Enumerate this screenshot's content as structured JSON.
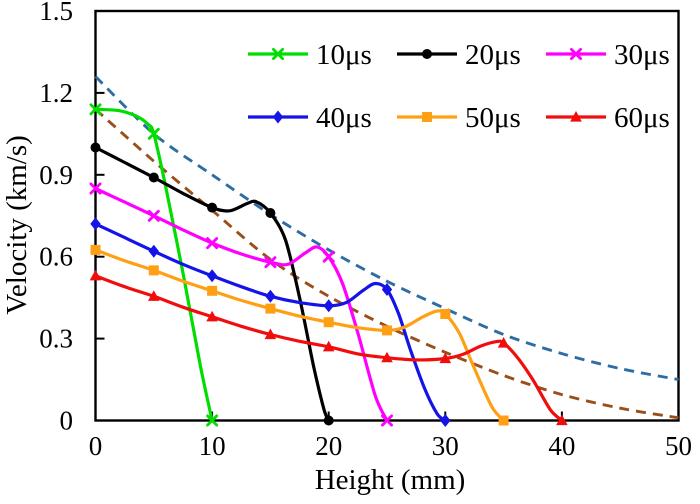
{
  "chart_data": {
    "type": "line",
    "title": "",
    "xlabel": "Height (mm)",
    "ylabel": "Velocity (km/s)",
    "xlim": [
      0,
      50
    ],
    "ylim": [
      0,
      1.5
    ],
    "x_ticks": [
      "0",
      "10",
      "20",
      "30",
      "40",
      "50"
    ],
    "x_tick_values": [
      0,
      10,
      20,
      30,
      40,
      50
    ],
    "y_ticks": [
      "0",
      "0.3",
      "0.6",
      "0.9",
      "1.2",
      "1.5"
    ],
    "y_tick_values": [
      0,
      0.3,
      0.6,
      0.9,
      1.2,
      1.5
    ],
    "grid": false,
    "legend_position": "top-inside-two-rows",
    "axis_color": "#000000",
    "background_color": "#ffffff",
    "series": [
      {
        "name": "10μs",
        "color": "#00DE00",
        "marker": "x",
        "x": [
          0,
          5,
          10
        ],
        "y": [
          1.14,
          1.05,
          0
        ],
        "shape": [
          [
            0,
            1.14
          ],
          [
            2,
            1.135
          ],
          [
            3.5,
            1.115
          ],
          [
            4.5,
            1.085
          ],
          [
            5,
            1.05
          ],
          [
            6,
            0.86
          ],
          [
            7.5,
            0.54
          ],
          [
            9,
            0.2
          ],
          [
            10,
            0
          ]
        ]
      },
      {
        "name": "20μs",
        "color": "#000000",
        "marker": "circle",
        "x": [
          0,
          5,
          10,
          15,
          20
        ],
        "y": [
          1.0,
          0.89,
          0.78,
          0.76,
          0
        ],
        "shape": [
          [
            0,
            1.0
          ],
          [
            2.5,
            0.945
          ],
          [
            5,
            0.89
          ],
          [
            7.5,
            0.832
          ],
          [
            10,
            0.78
          ],
          [
            11.5,
            0.768
          ],
          [
            13,
            0.795
          ],
          [
            13.8,
            0.801
          ],
          [
            15,
            0.76
          ],
          [
            16.3,
            0.66
          ],
          [
            17.5,
            0.45
          ],
          [
            18.7,
            0.2
          ],
          [
            19.6,
            0.04
          ],
          [
            20,
            0
          ]
        ]
      },
      {
        "name": "30μs",
        "color": "#FF00FF",
        "marker": "x",
        "x": [
          0,
          5,
          10,
          15,
          20,
          25
        ],
        "y": [
          0.85,
          0.75,
          0.65,
          0.58,
          0.6,
          0
        ],
        "shape": [
          [
            0,
            0.85
          ],
          [
            2.5,
            0.8
          ],
          [
            5,
            0.75
          ],
          [
            7.5,
            0.698
          ],
          [
            10,
            0.65
          ],
          [
            12.5,
            0.61
          ],
          [
            15,
            0.58
          ],
          [
            16.5,
            0.572
          ],
          [
            18,
            0.614
          ],
          [
            19,
            0.636
          ],
          [
            20,
            0.6
          ],
          [
            21.2,
            0.5
          ],
          [
            22.5,
            0.32
          ],
          [
            24,
            0.09
          ],
          [
            25,
            0
          ]
        ]
      },
      {
        "name": "40μs",
        "color": "#1414E8",
        "marker": "diamond",
        "x": [
          0,
          5,
          10,
          15,
          20,
          25,
          30
        ],
        "y": [
          0.72,
          0.62,
          0.53,
          0.455,
          0.42,
          0.48,
          0
        ],
        "shape": [
          [
            0,
            0.72
          ],
          [
            2.5,
            0.67
          ],
          [
            5,
            0.62
          ],
          [
            7.5,
            0.572
          ],
          [
            10,
            0.53
          ],
          [
            12.5,
            0.49
          ],
          [
            15,
            0.455
          ],
          [
            17.5,
            0.432
          ],
          [
            20,
            0.42
          ],
          [
            21.5,
            0.432
          ],
          [
            23,
            0.478
          ],
          [
            24,
            0.502
          ],
          [
            25,
            0.48
          ],
          [
            26,
            0.39
          ],
          [
            27,
            0.26
          ],
          [
            28.2,
            0.12
          ],
          [
            29.3,
            0.025
          ],
          [
            30,
            0
          ]
        ]
      },
      {
        "name": "50μs",
        "color": "#FFA014",
        "marker": "square",
        "x": [
          0,
          5,
          10,
          15,
          20,
          25,
          30,
          35
        ],
        "y": [
          0.625,
          0.55,
          0.475,
          0.41,
          0.36,
          0.33,
          0.39,
          0
        ],
        "shape": [
          [
            0,
            0.625
          ],
          [
            2.5,
            0.585
          ],
          [
            5,
            0.55
          ],
          [
            7.5,
            0.51
          ],
          [
            10,
            0.475
          ],
          [
            12.5,
            0.44
          ],
          [
            15,
            0.41
          ],
          [
            17.5,
            0.382
          ],
          [
            20,
            0.36
          ],
          [
            22.5,
            0.34
          ],
          [
            25,
            0.33
          ],
          [
            26.5,
            0.342
          ],
          [
            28,
            0.378
          ],
          [
            29.3,
            0.401
          ],
          [
            30,
            0.39
          ],
          [
            31.2,
            0.32
          ],
          [
            32.5,
            0.19
          ],
          [
            34,
            0.05
          ],
          [
            35,
            0
          ]
        ]
      },
      {
        "name": "60μs",
        "color": "#F20D0D",
        "marker": "triangle",
        "x": [
          0,
          5,
          10,
          15,
          20,
          25,
          30,
          35,
          40
        ],
        "y": [
          0.53,
          0.455,
          0.38,
          0.315,
          0.27,
          0.23,
          0.227,
          0.284,
          0
        ],
        "shape": [
          [
            0,
            0.53
          ],
          [
            2.5,
            0.49
          ],
          [
            5,
            0.455
          ],
          [
            7.5,
            0.415
          ],
          [
            10,
            0.38
          ],
          [
            12.5,
            0.345
          ],
          [
            15,
            0.315
          ],
          [
            17.5,
            0.29
          ],
          [
            20,
            0.27
          ],
          [
            22.5,
            0.244
          ],
          [
            25,
            0.23
          ],
          [
            27.5,
            0.222
          ],
          [
            30,
            0.227
          ],
          [
            31.5,
            0.242
          ],
          [
            33,
            0.272
          ],
          [
            34.4,
            0.289
          ],
          [
            35,
            0.284
          ],
          [
            36.2,
            0.23
          ],
          [
            37.5,
            0.15
          ],
          [
            39,
            0.04
          ],
          [
            40,
            0
          ]
        ]
      }
    ],
    "trend_lines": [
      {
        "name": "upper-dashed-trend",
        "color": "#2E6DA3",
        "dash": "10 7",
        "x": [
          0,
          5,
          10,
          15,
          20,
          25,
          30,
          35,
          40,
          45,
          50
        ],
        "y": [
          1.26,
          1.05,
          0.9,
          0.755,
          0.625,
          0.51,
          0.41,
          0.315,
          0.245,
          0.19,
          0.15
        ]
      },
      {
        "name": "lower-dashed-trend",
        "color": "#9A4F1A",
        "dash": "10 7",
        "x": [
          0,
          5,
          10,
          15,
          20,
          25,
          30,
          35,
          40,
          45,
          50
        ],
        "y": [
          1.14,
          0.95,
          0.77,
          0.59,
          0.455,
          0.345,
          0.25,
          0.165,
          0.095,
          0.045,
          0.01
        ]
      }
    ],
    "legend_labels": [
      "10μs",
      "20μs",
      "30μs",
      "40μs",
      "50μs",
      "60μs"
    ]
  }
}
